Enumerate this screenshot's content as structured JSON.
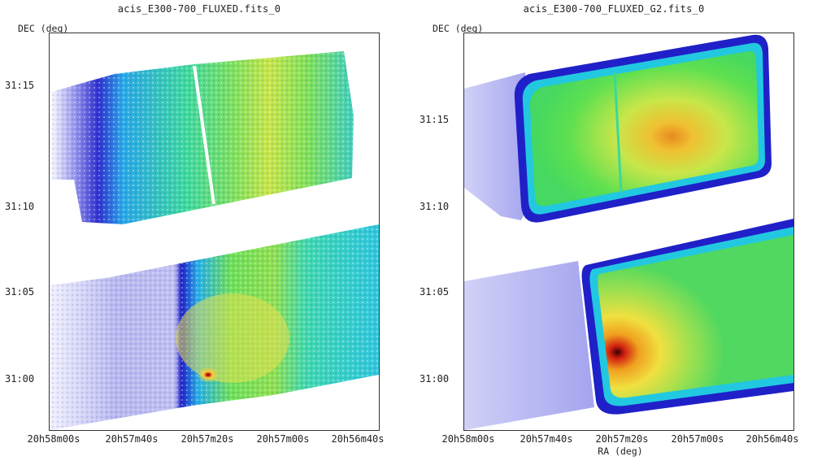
{
  "panels": [
    {
      "title": "acis_E300-700_FLUXED.fits_0",
      "ylabel": "DEC (deg)",
      "xlabel": "",
      "yticks": [
        "31:15",
        "31:10",
        "31:05",
        "31:00"
      ],
      "xticks": [
        "20h58m00s",
        "20h57m40s",
        "20h57m20s",
        "20h57m00s",
        "20h56m40s"
      ]
    },
    {
      "title": "acis_E300-700_FLUXED_G2.fits_0",
      "ylabel": "DEC (deg)",
      "xlabel": "RA (deg)",
      "yticks": [
        "31:15",
        "31:10",
        "31:05",
        "31:00"
      ],
      "xticks": [
        "20h58m00s",
        "20h57m40s",
        "20h57m20s",
        "20h57m00s",
        "20h56m40s"
      ]
    }
  ],
  "colormap": {
    "low": "#5a5ae0",
    "mid_low": "#21c4e8",
    "mid": "#46e04a",
    "mid_high": "#f5e53a",
    "high": "#e8441e",
    "peak": "#5a0000"
  }
}
